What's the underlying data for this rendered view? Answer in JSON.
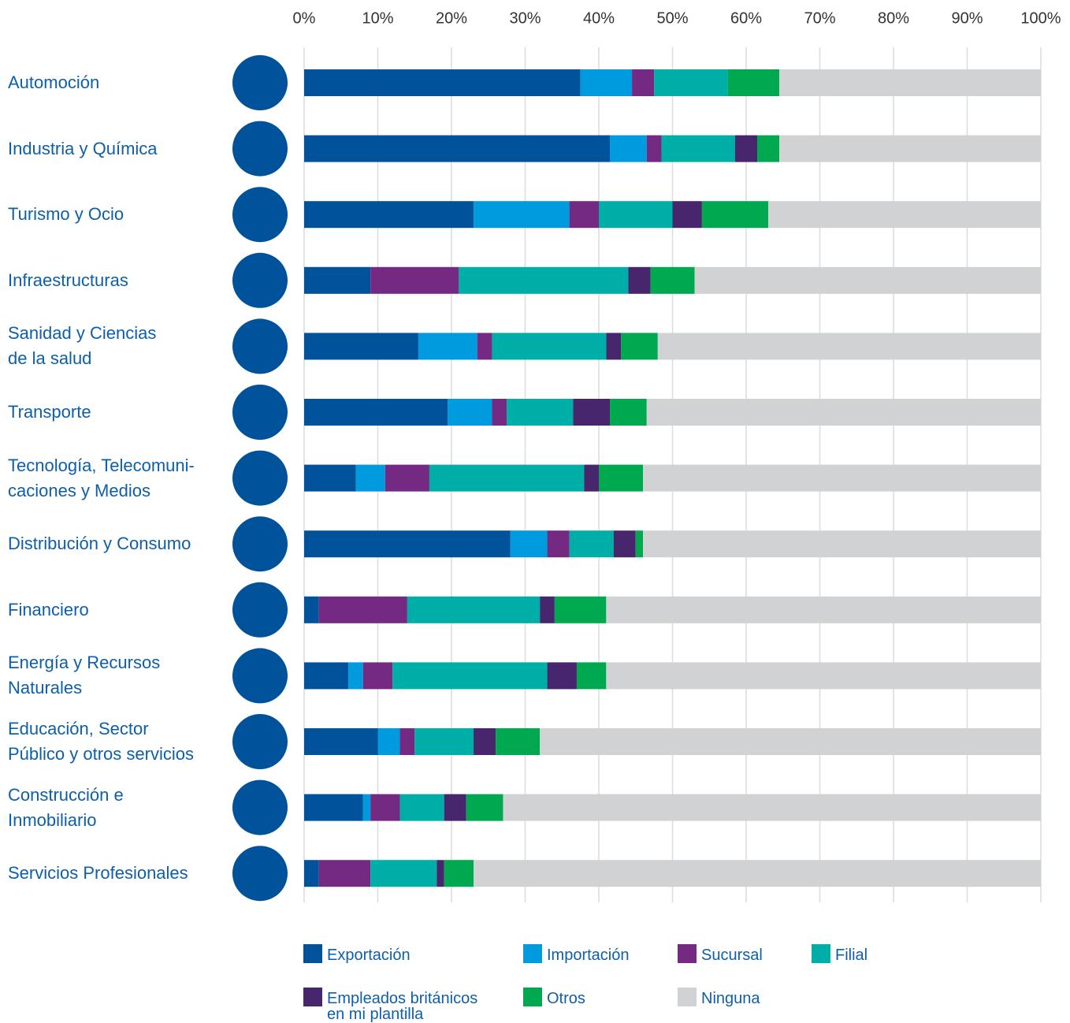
{
  "chart_data": {
    "type": "stacked_barh",
    "categories": [
      "Automoción",
      "Industria y Química",
      "Turismo y Ocio",
      "Infraestructuras",
      "Sanidad y Ciencias\nde la salud",
      "Transporte",
      "Tecnología, Telecomuni-\ncaciones y Medios",
      "Distribución y Consumo",
      "Financiero",
      "Energía y Recursos\nNaturales",
      "Educación, Sector\nPúblico y otros servicios",
      "Construcción e\nInmobiliario",
      "Servicios Profesionales"
    ],
    "series": [
      {
        "name": "Exportación",
        "color": "#00539b",
        "values": [
          37.5,
          41.5,
          23,
          9,
          15.5,
          19.5,
          7,
          28,
          2,
          6,
          10,
          8,
          2
        ]
      },
      {
        "name": "Importación",
        "color": "#009ade",
        "values": [
          7,
          5,
          13,
          0,
          8,
          6,
          4,
          5,
          0,
          2,
          3,
          1,
          0
        ]
      },
      {
        "name": "Sucursal",
        "color": "#742a83",
        "values": [
          3,
          2,
          4,
          12,
          2,
          2,
          6,
          3,
          12,
          4,
          2,
          4,
          7
        ]
      },
      {
        "name": "Filial",
        "color": "#00aea8",
        "values": [
          10,
          10,
          10,
          23,
          15.5,
          9,
          21,
          6,
          18,
          21,
          8,
          6,
          9
        ]
      },
      {
        "name": "Empleados británicos\nen mi plantilla",
        "color": "#48266d",
        "values": [
          0,
          3,
          4,
          3,
          2,
          5,
          2,
          3,
          2,
          4,
          3,
          3,
          1
        ]
      },
      {
        "name": "Otros",
        "color": "#00a94f",
        "values": [
          7,
          3,
          9,
          6,
          5,
          5,
          6,
          1,
          7,
          4,
          6,
          5,
          4
        ]
      },
      {
        "name": "Ninguna",
        "color": "#d1d2d4",
        "values": [
          35.5,
          35.5,
          37,
          47,
          52,
          53.5,
          54,
          54,
          59,
          59,
          68,
          73,
          77
        ]
      }
    ],
    "xlim": [
      0,
      100
    ],
    "xticks": [
      {
        "value": 0,
        "label": "0%"
      },
      {
        "value": 10,
        "label": "10%"
      },
      {
        "value": 20,
        "label": "20%"
      },
      {
        "value": 30,
        "label": "30%"
      },
      {
        "value": 40,
        "label": "40%"
      },
      {
        "value": 50,
        "label": "50%"
      },
      {
        "value": 60,
        "label": "60%"
      },
      {
        "value": 70,
        "label": "70%"
      },
      {
        "value": 80,
        "label": "80%"
      },
      {
        "value": 90,
        "label": "90%"
      },
      {
        "value": 100,
        "label": "100%"
      }
    ],
    "grid": true
  }
}
